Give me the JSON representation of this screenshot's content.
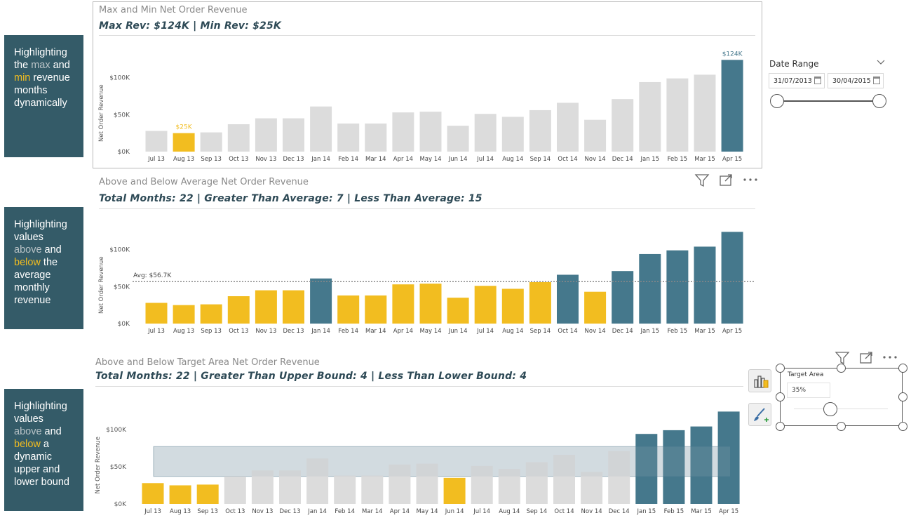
{
  "panels": [
    {
      "parts": [
        {
          "t": "Highlighting ",
          "c": ""
        },
        {
          "t": "the ",
          "c": ""
        },
        {
          "t": "max",
          "c": "hl-grey"
        },
        {
          "t": " and ",
          "c": ""
        },
        {
          "t": "min",
          "c": "hl-gold"
        },
        {
          "t": " revenue months dynamically",
          "c": ""
        }
      ]
    },
    {
      "parts": [
        {
          "t": "Highlighting values ",
          "c": ""
        },
        {
          "t": "above",
          "c": "hl-grey"
        },
        {
          "t": " and ",
          "c": ""
        },
        {
          "t": "below",
          "c": "hl-gold"
        },
        {
          "t": " the average monthly revenue",
          "c": ""
        }
      ]
    },
    {
      "parts": [
        {
          "t": "Highlighting values ",
          "c": ""
        },
        {
          "t": "above",
          "c": "hl-grey"
        },
        {
          "t": " and ",
          "c": ""
        },
        {
          "t": "below",
          "c": "hl-gold"
        },
        {
          "t": " a dynamic upper and lower bound",
          "c": ""
        }
      ]
    }
  ],
  "colors": {
    "grey": "#dcdcdc",
    "gold": "#f2bd20",
    "teal": "#45788c",
    "panel": "#345b68",
    "band": "#9fb3be"
  },
  "slicer": {
    "title": "Date Range",
    "start": "31/07/2013",
    "end": "30/04/2015"
  },
  "target": {
    "title": "Target Area",
    "value": "35%"
  },
  "chart_data": [
    {
      "type": "bar",
      "title": "Max and Min Net Order Revenue",
      "subtitle": "Max Rev: $124K | Min Rev: $25K",
      "ylabel": "Net Order Revenue",
      "yticks": [
        "$0K",
        "$50K",
        "$100K"
      ],
      "ylim": [
        0,
        130
      ],
      "categories": [
        "Jul 13",
        "Aug 13",
        "Sep 13",
        "Oct 13",
        "Nov 13",
        "Dec 13",
        "Jan 14",
        "Feb 14",
        "Mar 14",
        "Apr 14",
        "May 14",
        "Jun 14",
        "Jul 14",
        "Aug 14",
        "Sep 14",
        "Oct 14",
        "Nov 14",
        "Dec 14",
        "Jan 15",
        "Feb 15",
        "Mar 15",
        "Apr 15"
      ],
      "values": [
        28,
        25,
        26,
        37,
        45,
        45,
        61,
        38,
        38,
        53,
        54,
        35,
        51,
        47,
        56,
        66,
        43,
        71,
        94,
        99,
        104,
        124
      ],
      "colors": [
        "grey",
        "gold",
        "grey",
        "grey",
        "grey",
        "grey",
        "grey",
        "grey",
        "grey",
        "grey",
        "grey",
        "grey",
        "grey",
        "grey",
        "grey",
        "grey",
        "grey",
        "grey",
        "grey",
        "grey",
        "grey",
        "teal"
      ],
      "data_labels": {
        "1": "$25K",
        "21": "$124K"
      }
    },
    {
      "type": "bar",
      "title": "Above and Below Average Net Order Revenue",
      "subtitle": "Total Months: 22 | Greater Than Average: 7 | Less Than Average: 15",
      "ylabel": "Net Order Revenue",
      "yticks": [
        "$0K",
        "$50K",
        "$100K"
      ],
      "ylim": [
        0,
        130
      ],
      "average": 56.7,
      "average_label": "Avg: $56.7K",
      "categories": [
        "Jul 13",
        "Aug 13",
        "Sep 13",
        "Oct 13",
        "Nov 13",
        "Dec 13",
        "Jan 14",
        "Feb 14",
        "Mar 14",
        "Apr 14",
        "May 14",
        "Jun 14",
        "Jul 14",
        "Aug 14",
        "Sep 14",
        "Oct 14",
        "Nov 14",
        "Dec 14",
        "Jan 15",
        "Feb 15",
        "Mar 15",
        "Apr 15"
      ],
      "values": [
        28,
        25,
        26,
        37,
        45,
        45,
        61,
        38,
        38,
        53,
        54,
        35,
        51,
        47,
        56,
        66,
        43,
        71,
        94,
        99,
        104,
        124
      ],
      "colors": [
        "gold",
        "gold",
        "gold",
        "gold",
        "gold",
        "gold",
        "teal",
        "gold",
        "gold",
        "gold",
        "gold",
        "gold",
        "gold",
        "gold",
        "gold",
        "teal",
        "gold",
        "teal",
        "teal",
        "teal",
        "teal",
        "teal"
      ]
    },
    {
      "type": "bar",
      "title": "Above and Below Target Area Net Order Revenue",
      "subtitle": "Total Months: 22 | Greater Than Upper Bound: 4 | Less Than Lower Bound: 4",
      "ylabel": "Net Order Revenue",
      "yticks": [
        "$0K",
        "$50K",
        "$100K"
      ],
      "ylim": [
        0,
        130
      ],
      "band": [
        37,
        77
      ],
      "categories": [
        "Jul 13",
        "Aug 13",
        "Sep 13",
        "Oct 13",
        "Nov 13",
        "Dec 13",
        "Jan 14",
        "Feb 14",
        "Mar 14",
        "Apr 14",
        "May 14",
        "Jun 14",
        "Jul 14",
        "Aug 14",
        "Sep 14",
        "Oct 14",
        "Nov 14",
        "Dec 14",
        "Jan 15",
        "Feb 15",
        "Mar 15",
        "Apr 15"
      ],
      "values": [
        28,
        25,
        26,
        37,
        45,
        45,
        61,
        38,
        38,
        53,
        54,
        35,
        51,
        47,
        56,
        66,
        43,
        71,
        94,
        99,
        104,
        124
      ],
      "colors": [
        "gold",
        "gold",
        "gold",
        "grey",
        "grey",
        "grey",
        "grey",
        "grey",
        "grey",
        "grey",
        "grey",
        "gold",
        "grey",
        "grey",
        "grey",
        "grey",
        "grey",
        "grey",
        "teal",
        "teal",
        "teal",
        "teal"
      ]
    }
  ]
}
